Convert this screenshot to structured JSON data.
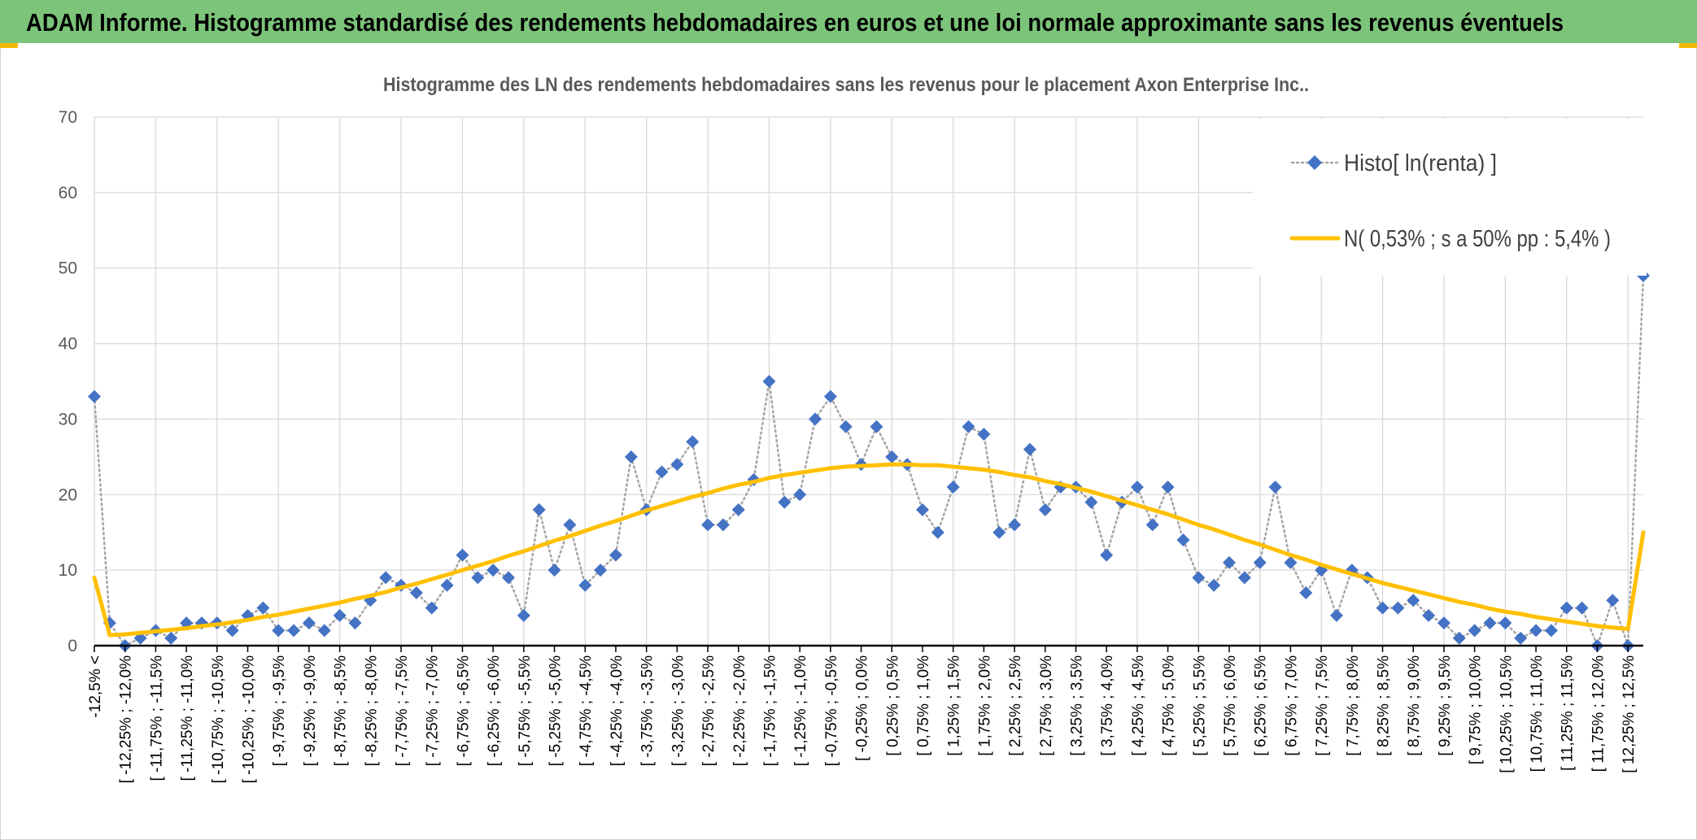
{
  "chart_data": {
    "type": "line",
    "header": "ADAM Informe. Histogramme standardisé des rendements hebdomadaires en euros et une loi normale approximante sans les revenus éventuels",
    "title": "Histogramme des LN des rendements hebdomadaires sans les revenus pour le placement Axon Enterprise Inc..",
    "categories": [
      "-12,5% <",
      null,
      "[ -12,25% ; -12,0%",
      null,
      "[ -11,75% ; -11,5%",
      null,
      "[ -11,25% ; -11,0%",
      null,
      "[ -10,75% ; -10,5%",
      null,
      "[ -10,25% ; -10,0%",
      null,
      "[ -9,75% ; -9,5%",
      null,
      "[ -9,25% ; -9,0%",
      null,
      "[ -8,75% ; -8,5%",
      null,
      "[ -8,25% ; -8,0%",
      null,
      "[ -7,75% ; -7,5%",
      null,
      "[ -7,25% ; -7,0%",
      null,
      "[ -6,75% ; -6,5%",
      null,
      "[ -6,25% ; -6,0%",
      null,
      "[ -5,75% ; -5,5%",
      null,
      "[ -5,25% ; -5,0%",
      null,
      "[ -4,75% ; -4,5%",
      null,
      "[ -4,25% ; -4,0%",
      null,
      "[ -3,75% ; -3,5%",
      null,
      "[ -3,25% ; -3,0%",
      null,
      "[ -2,75% ; -2,5%",
      null,
      "[ -2,25% ; -2,0%",
      null,
      "[ -1,75% ; -1,5%",
      null,
      "[ -1,25% ; -1,0%",
      null,
      "[ -0,75% ; -0,5%",
      null,
      "[ -0,25% ; 0,0%",
      null,
      "[ 0,25% ; 0,5%",
      null,
      "[ 0,75% ; 1,0%",
      null,
      "[ 1,25% ; 1,5%",
      null,
      "[ 1,75% ; 2,0%",
      null,
      "[ 2,25% ; 2,5%",
      null,
      "[ 2,75% ; 3,0%",
      null,
      "[ 3,25% ; 3,5%",
      null,
      "[ 3,75% ; 4,0%",
      null,
      "[ 4,25% ; 4,5%",
      null,
      "[ 4,75% ; 5,0%",
      null,
      "[ 5,25% ; 5,5%",
      null,
      "[ 5,75% ; 6,0%",
      null,
      "[ 6,25% ; 6,5%",
      null,
      "[ 6,75% ; 7,0%",
      null,
      "[ 7,25% ; 7,5%",
      null,
      "[ 7,75% ; 8,0%",
      null,
      "[ 8,25% ; 8,5%",
      null,
      "[ 8,75% ; 9,0%",
      null,
      "[ 9,25% ; 9,5%",
      null,
      "[ 9,75% ; 10,0%",
      null,
      "[ 10,25% ; 10,5%",
      null,
      "[ 10,75% ; 11,0%",
      null,
      "[ 11,25% ; 11,5%",
      null,
      "[ 11,75% ; 12,0%",
      null,
      "[ 12,25% ; 12,5%",
      null
    ],
    "series": [
      {
        "name": "Histo[ ln(renta) ]",
        "color": "#4472c4",
        "line_color": "#a5a5a5",
        "line_style": "dotted",
        "marker": "diamond",
        "values": [
          33,
          3,
          0,
          1,
          2,
          1,
          3,
          3,
          3,
          2,
          4,
          5,
          2,
          2,
          3,
          2,
          4,
          3,
          6,
          9,
          8,
          7,
          5,
          8,
          12,
          9,
          10,
          9,
          4,
          18,
          10,
          16,
          8,
          10,
          12,
          25,
          18,
          23,
          24,
          27,
          16,
          16,
          18,
          22,
          35,
          19,
          20,
          30,
          33,
          29,
          24,
          29,
          25,
          24,
          18,
          15,
          21,
          29,
          28,
          15,
          16,
          26,
          18,
          21,
          21,
          19,
          12,
          19,
          21,
          16,
          21,
          14,
          9,
          8,
          11,
          9,
          11,
          21,
          11,
          7,
          10,
          4,
          10,
          9,
          5,
          5,
          6,
          4,
          3,
          1,
          2,
          3,
          3,
          1,
          2,
          2,
          5,
          5,
          0,
          6,
          0,
          49
        ]
      },
      {
        "name": "N( 0,53% ; s a 50% pp : 5,4% )",
        "color": "#ffc000",
        "line_style": "solid",
        "marker": "none",
        "values": [
          9,
          1.4,
          1.5,
          1.7,
          1.9,
          2.1,
          2.3,
          2.6,
          2.8,
          3.1,
          3.4,
          3.8,
          4.1,
          4.5,
          4.9,
          5.3,
          5.7,
          6.2,
          6.6,
          7.1,
          7.7,
          8.2,
          8.8,
          9.4,
          10.0,
          10.6,
          11.2,
          11.9,
          12.5,
          13.2,
          13.9,
          14.5,
          15.2,
          15.9,
          16.5,
          17.2,
          17.9,
          18.5,
          19.1,
          19.7,
          20.2,
          20.8,
          21.3,
          21.7,
          22.2,
          22.6,
          22.9,
          23.2,
          23.5,
          23.7,
          23.8,
          23.9,
          24.0,
          24.0,
          23.9,
          23.9,
          23.7,
          23.5,
          23.3,
          23.0,
          22.6,
          22.3,
          21.8,
          21.4,
          20.9,
          20.4,
          19.8,
          19.2,
          18.6,
          18.0,
          17.4,
          16.7,
          16.0,
          15.4,
          14.7,
          14.0,
          13.4,
          12.7,
          12.0,
          11.4,
          10.7,
          10.1,
          9.5,
          8.9,
          8.3,
          7.8,
          7.3,
          6.8,
          6.3,
          5.8,
          5.4,
          4.9,
          4.5,
          4.2,
          3.8,
          3.5,
          3.2,
          2.9,
          2.6,
          2.4,
          2.2,
          15
        ]
      }
    ],
    "ylim": [
      0,
      70
    ],
    "yticks": [
      0,
      10,
      20,
      30,
      40,
      50,
      60,
      70
    ],
    "grid": true,
    "legend": "top-right"
  }
}
